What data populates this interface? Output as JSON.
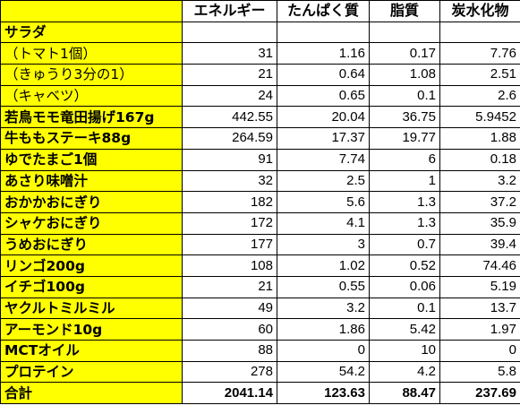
{
  "colors": {
    "label_fill": "#ffff00",
    "grid": "#000000"
  },
  "table": {
    "headers": [
      "",
      "エネルギー",
      "たんぱく質",
      "脂質",
      "炭水化物"
    ],
    "rows": [
      {
        "label": "サラダ",
        "energy": "",
        "protein": "",
        "fat": "",
        "carbs": ""
      },
      {
        "label": "（トマト1個）",
        "energy": "31",
        "protein": "1.16",
        "fat": "0.17",
        "carbs": "7.76"
      },
      {
        "label": "（きゅうり3分の1）",
        "energy": "21",
        "protein": "0.64",
        "fat": "1.08",
        "carbs": "2.51"
      },
      {
        "label": "（キャベツ）",
        "energy": "24",
        "protein": "0.65",
        "fat": "0.1",
        "carbs": "2.6"
      },
      {
        "label": "若鳥モモ竜田揚げ167g",
        "energy": "442.55",
        "protein": "20.04",
        "fat": "36.75",
        "carbs": "5.9452"
      },
      {
        "label": "牛ももステーキ88g",
        "energy": "264.59",
        "protein": "17.37",
        "fat": "19.77",
        "carbs": "1.88"
      },
      {
        "label": "ゆでたまご1個",
        "energy": "91",
        "protein": "7.74",
        "fat": "6",
        "carbs": "0.18"
      },
      {
        "label": "あさり味噌汁",
        "energy": "32",
        "protein": "2.5",
        "fat": "1",
        "carbs": "3.2"
      },
      {
        "label": "おかかおにぎり",
        "energy": "182",
        "protein": "5.6",
        "fat": "1.3",
        "carbs": "37.2"
      },
      {
        "label": "シャケおにぎり",
        "energy": "172",
        "protein": "4.1",
        "fat": "1.3",
        "carbs": "35.9"
      },
      {
        "label": "うめおにぎり",
        "energy": "177",
        "protein": "3",
        "fat": "0.7",
        "carbs": "39.4"
      },
      {
        "label": "リンゴ200g",
        "energy": "108",
        "protein": "1.02",
        "fat": "0.52",
        "carbs": "74.46"
      },
      {
        "label": "イチゴ100g",
        "energy": "21",
        "protein": "0.55",
        "fat": "0.06",
        "carbs": "5.19"
      },
      {
        "label": "ヤクルトミルミル",
        "energy": "49",
        "protein": "3.2",
        "fat": "0.1",
        "carbs": "13.7"
      },
      {
        "label": "アーモンド10g",
        "energy": "60",
        "protein": "1.86",
        "fat": "5.42",
        "carbs": "1.97"
      },
      {
        "label": "MCTオイル",
        "energy": "88",
        "protein": "0",
        "fat": "10",
        "carbs": "0"
      },
      {
        "label": "プロテイン",
        "energy": "278",
        "protein": "54.2",
        "fat": "4.2",
        "carbs": "5.8"
      }
    ],
    "total": {
      "label": "合計",
      "energy": "2041.14",
      "protein": "123.63",
      "fat": "88.47",
      "carbs": "237.69"
    }
  }
}
